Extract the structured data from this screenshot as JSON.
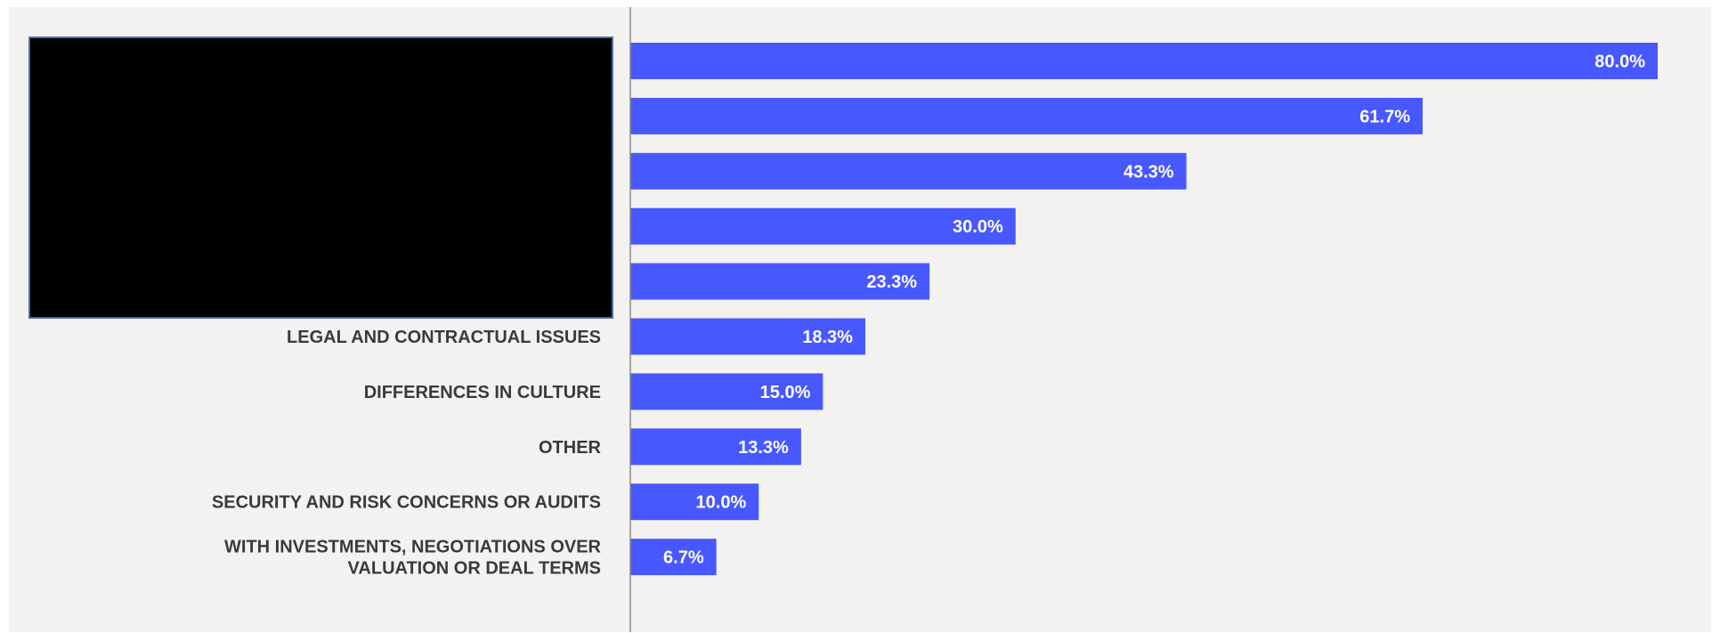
{
  "chart_data": {
    "type": "bar",
    "orientation": "horizontal",
    "categories": [
      "",
      "",
      "",
      "",
      "",
      "LEGAL AND CONTRACTUAL ISSUES",
      "DIFFERENCES IN CULTURE",
      "OTHER",
      "SECURITY AND RISK CONCERNS OR AUDITS",
      "WITH INVESTMENTS, NEGOTIATIONS OVER\nVALUATION OR DEAL TERMS"
    ],
    "values": [
      80.0,
      61.7,
      43.3,
      30.0,
      23.3,
      18.3,
      15.0,
      13.3,
      10.0,
      6.7
    ],
    "value_labels": [
      "80.0%",
      "61.7%",
      "43.3%",
      "30.0%",
      "23.3%",
      "18.3%",
      "15.0%",
      "13.3%",
      "10.0%",
      "6.7%"
    ],
    "xlim": [
      0,
      85
    ],
    "grid": false,
    "legend": "none",
    "bar_color": "#4858ff",
    "redacted_label_region": true
  },
  "colors": {
    "bar": "#4858ff",
    "background": "#f4f2f1",
    "axis": "#8a8a8a",
    "label_text": "#3a3a3a",
    "value_text": "#ffffff",
    "redaction": "#000000"
  }
}
